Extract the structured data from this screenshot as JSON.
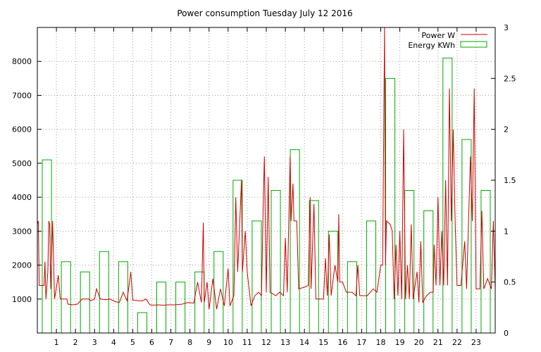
{
  "chart_data": {
    "title": "Power consumption Tuesday July 12 2016",
    "type": "line",
    "x_ticks": [
      "1",
      "2",
      "3",
      "4",
      "5",
      "6",
      "7",
      "8",
      "9",
      "10",
      "11",
      "12",
      "13",
      "14",
      "15",
      "16",
      "17",
      "18",
      "19",
      "20",
      "21",
      "22",
      "23"
    ],
    "x_range": [
      0,
      24
    ],
    "y_left_ticks": [
      "1000",
      "2000",
      "3000",
      "4000",
      "5000",
      "6000",
      "7000",
      "8000"
    ],
    "y_left_range": [
      0,
      9000
    ],
    "y_right_ticks": [
      "0",
      "0.5",
      "1",
      "1.5",
      "2",
      "2.5",
      "3"
    ],
    "y_right_range": [
      0,
      3
    ],
    "grid": true,
    "legend_position": "top-right",
    "series": [
      {
        "name": "Power W",
        "kind": "line",
        "axis": "left",
        "color": "#cc0000",
        "points": [
          [
            0,
            3200
          ],
          [
            0.05,
            3300
          ],
          [
            0.1,
            1400
          ],
          [
            0.35,
            1400
          ],
          [
            0.4,
            2100
          ],
          [
            0.45,
            1000
          ],
          [
            0.55,
            1800
          ],
          [
            0.6,
            3300
          ],
          [
            0.65,
            3200
          ],
          [
            0.7,
            1300
          ],
          [
            0.8,
            3300
          ],
          [
            0.9,
            1000
          ],
          [
            1.1,
            1700
          ],
          [
            1.2,
            1000
          ],
          [
            1.55,
            1000
          ],
          [
            1.6,
            850
          ],
          [
            1.85,
            830
          ],
          [
            2.1,
            850
          ],
          [
            2.35,
            1000
          ],
          [
            2.5,
            1000
          ],
          [
            2.7,
            1000
          ],
          [
            2.8,
            950
          ],
          [
            3.0,
            1000
          ],
          [
            3.1,
            1300
          ],
          [
            3.3,
            1000
          ],
          [
            3.6,
            980
          ],
          [
            3.8,
            1000
          ],
          [
            4.1,
            920
          ],
          [
            4.3,
            900
          ],
          [
            4.5,
            1200
          ],
          [
            4.7,
            950
          ],
          [
            4.9,
            1800
          ],
          [
            5.0,
            970
          ],
          [
            5.3,
            950
          ],
          [
            5.5,
            950
          ],
          [
            5.7,
            1000
          ],
          [
            5.9,
            830
          ],
          [
            6.1,
            820
          ],
          [
            6.3,
            830
          ],
          [
            6.6,
            820
          ],
          [
            6.9,
            830
          ],
          [
            7.2,
            830
          ],
          [
            7.6,
            850
          ],
          [
            7.9,
            900
          ],
          [
            8.2,
            880
          ],
          [
            8.4,
            1500
          ],
          [
            8.6,
            900
          ],
          [
            8.7,
            3250
          ],
          [
            8.75,
            900
          ],
          [
            8.9,
            1500
          ],
          [
            9.0,
            700
          ],
          [
            9.2,
            1600
          ],
          [
            9.4,
            700
          ],
          [
            9.6,
            1300
          ],
          [
            9.8,
            800
          ],
          [
            10.0,
            1900
          ],
          [
            10.1,
            800
          ],
          [
            10.3,
            1100
          ],
          [
            10.4,
            4000
          ],
          [
            10.5,
            1800
          ],
          [
            10.7,
            4500
          ],
          [
            10.75,
            1800
          ],
          [
            10.9,
            3000
          ],
          [
            11.0,
            1800
          ],
          [
            11.2,
            800
          ],
          [
            11.4,
            1100
          ],
          [
            11.6,
            1200
          ],
          [
            11.75,
            1100
          ],
          [
            11.85,
            4000
          ],
          [
            11.9,
            5200
          ],
          [
            12.0,
            1200
          ],
          [
            12.1,
            4600
          ],
          [
            12.2,
            1200
          ],
          [
            12.5,
            1100
          ],
          [
            12.7,
            1200
          ],
          [
            12.9,
            1100
          ],
          [
            13.0,
            2800
          ],
          [
            13.1,
            1200
          ],
          [
            13.25,
            5200
          ],
          [
            13.3,
            3300
          ],
          [
            13.4,
            4400
          ],
          [
            13.45,
            3300
          ],
          [
            13.6,
            3300
          ],
          [
            13.7,
            1300
          ],
          [
            14.0,
            1350
          ],
          [
            14.2,
            1400
          ],
          [
            14.3,
            4000
          ],
          [
            14.35,
            1300
          ],
          [
            14.5,
            3800
          ],
          [
            14.6,
            1000
          ],
          [
            14.8,
            1000
          ],
          [
            15.0,
            1000
          ],
          [
            15.1,
            2200
          ],
          [
            15.2,
            1100
          ],
          [
            15.3,
            2900
          ],
          [
            15.4,
            1100
          ],
          [
            15.6,
            2000
          ],
          [
            15.75,
            1500
          ],
          [
            15.8,
            3500
          ],
          [
            15.85,
            1500
          ],
          [
            16.0,
            1500
          ],
          [
            16.2,
            1200
          ],
          [
            16.5,
            1200
          ],
          [
            16.7,
            1100
          ],
          [
            16.8,
            2000
          ],
          [
            16.9,
            1100
          ],
          [
            17.1,
            1100
          ],
          [
            17.3,
            1100
          ],
          [
            17.6,
            1300
          ],
          [
            17.8,
            1200
          ],
          [
            18.0,
            2000
          ],
          [
            18.1,
            2000
          ],
          [
            18.2,
            9000
          ],
          [
            18.25,
            2000
          ],
          [
            18.3,
            3300
          ],
          [
            18.5,
            3200
          ],
          [
            18.6,
            3000
          ],
          [
            18.7,
            1000
          ],
          [
            18.8,
            2600
          ],
          [
            18.9,
            1100
          ],
          [
            19.0,
            3000
          ],
          [
            19.1,
            1000
          ],
          [
            19.2,
            6000
          ],
          [
            19.3,
            1000
          ],
          [
            19.4,
            2000
          ],
          [
            19.5,
            1000
          ],
          [
            19.6,
            3200
          ],
          [
            19.7,
            1000
          ],
          [
            19.9,
            1800
          ],
          [
            20.0,
            900
          ],
          [
            20.1,
            2700
          ],
          [
            20.2,
            900
          ],
          [
            20.4,
            1100
          ],
          [
            20.6,
            1200
          ],
          [
            20.75,
            1200
          ],
          [
            20.8,
            2600
          ],
          [
            20.9,
            1400
          ],
          [
            21.0,
            4000
          ],
          [
            21.1,
            1400
          ],
          [
            21.2,
            3000
          ],
          [
            21.3,
            1400
          ],
          [
            21.4,
            4500
          ],
          [
            21.5,
            1400
          ],
          [
            21.6,
            7200
          ],
          [
            21.7,
            3300
          ],
          [
            21.8,
            6000
          ],
          [
            21.9,
            3300
          ],
          [
            22.0,
            1400
          ],
          [
            22.2,
            1400
          ],
          [
            22.4,
            2700
          ],
          [
            22.5,
            1300
          ],
          [
            22.7,
            5200
          ],
          [
            22.8,
            3300
          ],
          [
            22.9,
            7200
          ],
          [
            23.0,
            1300
          ],
          [
            23.2,
            1300
          ],
          [
            23.3,
            3600
          ],
          [
            23.4,
            1300
          ],
          [
            23.6,
            1600
          ],
          [
            23.8,
            1300
          ],
          [
            23.9,
            3300
          ],
          [
            24.0,
            1300
          ]
        ]
      },
      {
        "name": "Energy KWh",
        "kind": "bar",
        "axis": "right",
        "color": "#00aa00",
        "values": [
          1.7,
          0.7,
          0.6,
          0.8,
          0.7,
          0.2,
          0.5,
          0.5,
          0.6,
          0.8,
          1.5,
          1.1,
          1.4,
          1.8,
          1.3,
          1.0,
          0.7,
          1.1,
          2.5,
          1.4,
          1.2,
          2.7,
          1.9,
          1.4
        ]
      }
    ]
  }
}
